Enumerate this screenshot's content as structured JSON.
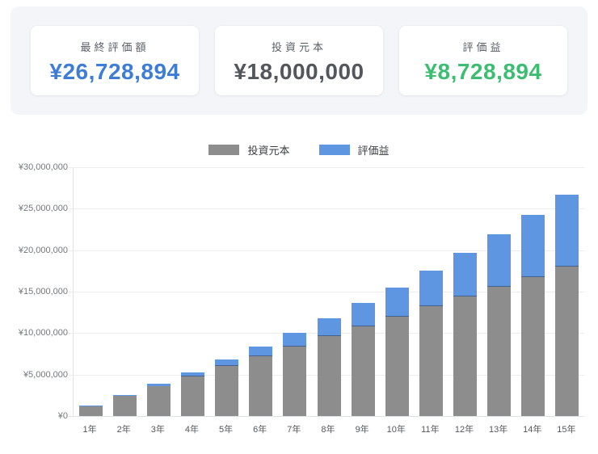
{
  "summary_cards": [
    {
      "label": "最終評価額",
      "value": "¥26,728,894",
      "color": "#3e7dd6"
    },
    {
      "label": "投資元本",
      "value": "¥18,000,000",
      "color": "#53565b"
    },
    {
      "label": "評価益",
      "value": "¥8,728,894",
      "color": "#3cbd72"
    }
  ],
  "chart_data": {
    "type": "bar",
    "stacked": true,
    "title": "",
    "xlabel": "",
    "ylabel": "",
    "categories": [
      "1年",
      "2年",
      "3年",
      "4年",
      "5年",
      "6年",
      "7年",
      "8年",
      "9年",
      "10年",
      "11年",
      "12年",
      "13年",
      "14年",
      "15年"
    ],
    "series": [
      {
        "name": "投資元本",
        "color": "#8d8d8d",
        "values": [
          1200000,
          2400000,
          3600000,
          4800000,
          6000000,
          7200000,
          8400000,
          9600000,
          10800000,
          12000000,
          13200000,
          14400000,
          15600000,
          16800000,
          18000000
        ]
      },
      {
        "name": "評価益",
        "color": "#5f96e2",
        "values": [
          27886,
          118592,
          275334,
          501488,
          800608,
          1176425,
          1632865,
          2174051,
          2804319,
          3528227,
          4350566,
          5276372,
          6310938,
          7459829,
          8728894
        ]
      }
    ],
    "ylim": [
      0,
      30000000
    ],
    "y_ticks": [
      {
        "value": 0,
        "label": "¥0"
      },
      {
        "value": 5000000,
        "label": "¥5,000,000"
      },
      {
        "value": 10000000,
        "label": "¥10,000,000"
      },
      {
        "value": 15000000,
        "label": "¥15,000,000"
      },
      {
        "value": 20000000,
        "label": "¥20,000,000"
      },
      {
        "value": 25000000,
        "label": "¥25,000,000"
      },
      {
        "value": 30000000,
        "label": "¥30,000,000"
      }
    ],
    "legend_position": "top",
    "grid": "horizontal",
    "segment_divider_color": "#46618c"
  }
}
